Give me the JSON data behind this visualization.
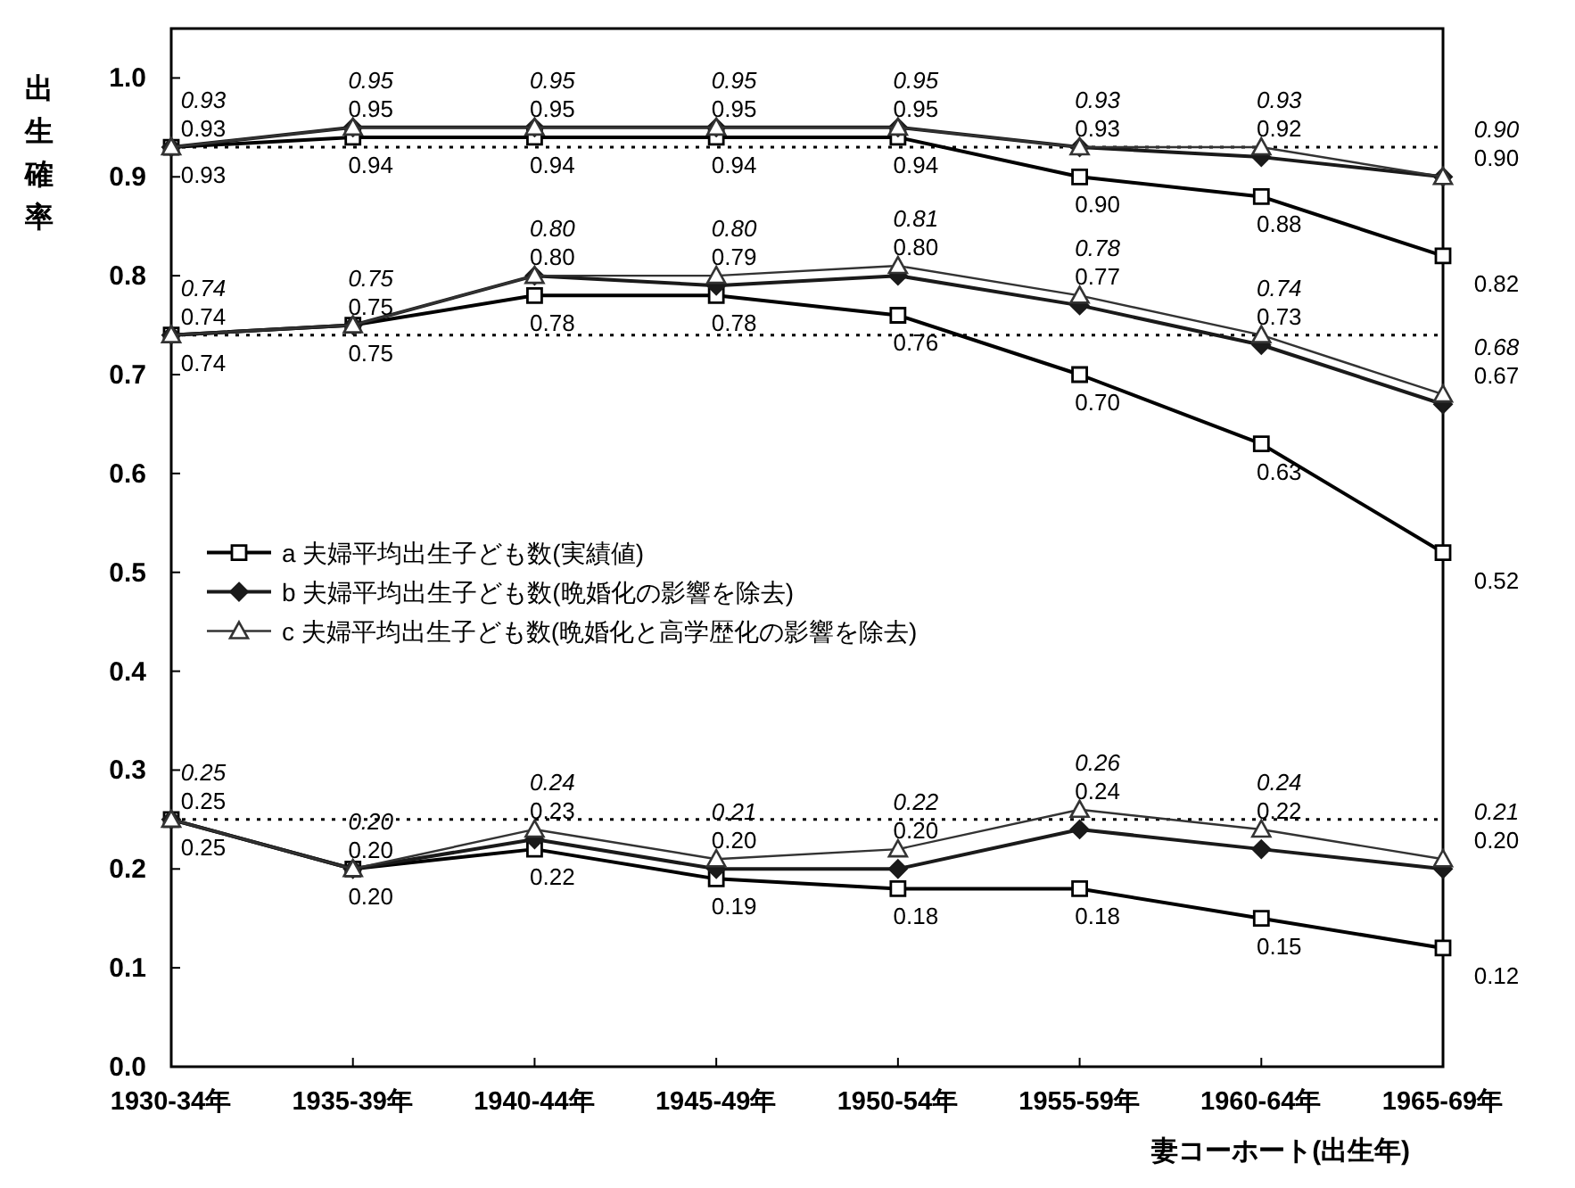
{
  "chart_data": {
    "type": "line",
    "xlabel": "妻コーホート(出生年)",
    "ylabel": "出生確率",
    "categories": [
      "1930-34年",
      "1935-39年",
      "1940-44年",
      "1945-49年",
      "1950-54年",
      "1955-59年",
      "1960-64年",
      "1965-69年"
    ],
    "ylim": [
      0,
      1.05
    ],
    "yticks": [
      {
        "value": 0,
        "label": "0.0"
      },
      {
        "value": 0.1,
        "label": "0.1"
      },
      {
        "value": 0.2,
        "label": "0.2"
      },
      {
        "value": 0.3,
        "label": "0.3"
      },
      {
        "value": 0.4,
        "label": "0.4"
      },
      {
        "value": 0.5,
        "label": "0.5"
      },
      {
        "value": 0.6,
        "label": "0.6"
      },
      {
        "value": 0.7,
        "label": "0.7"
      },
      {
        "value": 0.8,
        "label": "0.8"
      },
      {
        "value": 0.9,
        "label": "0.9"
      },
      {
        "value": 1,
        "label": "1.0"
      }
    ],
    "grid": false,
    "legend": "left",
    "line_style": "solid",
    "series": [
      {
        "name": "a 夫婦平均出生子ども数(実績値)",
        "color": "#000000",
        "marker": "square",
        "values": [
          0.93,
          0.94,
          0.94,
          0.94,
          0.94,
          0.9,
          0.88,
          0.82
        ],
        "value_labels": [
          "0.93",
          "0.94",
          "0.94",
          "0.94",
          "0.94",
          "0.90",
          "0.88",
          "0.82"
        ]
      },
      {
        "name": "b 夫婦平均出生子ども数(晩婚化の影響を除去)",
        "color": "#1a1a1a",
        "marker": "diamond",
        "values": [
          0.93,
          0.95,
          0.95,
          0.95,
          0.95,
          0.93,
          0.92,
          0.9
        ],
        "value_labels": [
          "0.93",
          "0.95",
          "0.95",
          "0.95",
          "0.95",
          "0.93",
          "0.92",
          "0.90"
        ]
      },
      {
        "name": "c 夫婦平均出生子ども数(晩婚化と高学歴化の影響を除去)",
        "color": "#333333",
        "marker": "triangle",
        "values": [
          0.93,
          0.95,
          0.95,
          0.95,
          0.95,
          0.93,
          0.93,
          0.9
        ],
        "value_labels": [
          "0.93",
          "0.95",
          "0.95",
          "0.95",
          "0.95",
          "0.93",
          "0.93",
          "0.90"
        ]
      },
      {
        "color": "#000000",
        "marker": "square",
        "values": [
          0.74,
          0.75,
          0.78,
          0.78,
          0.76,
          0.7,
          0.63,
          0.52
        ],
        "value_labels": [
          "0.74",
          "0.75",
          "0.78",
          "0.78",
          "0.76",
          "0.70",
          "0.63",
          "0.52"
        ]
      },
      {
        "color": "#1a1a1a",
        "marker": "diamond",
        "values": [
          0.74,
          0.75,
          0.8,
          0.79,
          0.8,
          0.77,
          0.73,
          0.67
        ],
        "value_labels": [
          "0.74",
          "0.75",
          "0.80",
          "0.79",
          "0.80",
          "0.77",
          "0.73",
          "0.67"
        ]
      },
      {
        "color": "#333333",
        "marker": "triangle",
        "values": [
          0.74,
          0.75,
          0.8,
          0.8,
          0.81,
          0.78,
          0.74,
          0.68
        ],
        "value_labels": [
          "0.74",
          "0.75",
          "0.80",
          "0.80",
          "0.81",
          "0.78",
          "0.74",
          "0.68"
        ]
      },
      {
        "color": "#000000",
        "marker": "square",
        "values": [
          0.25,
          0.2,
          0.22,
          0.19,
          0.18,
          0.18,
          0.15,
          0.12
        ],
        "value_labels": [
          "0.25",
          "0.20",
          "0.22",
          "0.19",
          "0.18",
          "0.18",
          "0.15",
          "0.12"
        ]
      },
      {
        "color": "#1a1a1a",
        "marker": "diamond",
        "values": [
          0.25,
          0.2,
          0.23,
          0.2,
          0.2,
          0.24,
          0.22,
          0.2
        ],
        "value_labels": [
          "0.25",
          "0.20",
          "0.23",
          "0.20",
          "0.20",
          "0.24",
          "0.22",
          "0.20"
        ]
      },
      {
        "color": "#333333",
        "marker": "triangle",
        "values": [
          0.25,
          0.2,
          0.24,
          0.21,
          0.22,
          0.26,
          0.24,
          0.21
        ],
        "value_labels": [
          "0.25",
          "0.20",
          "0.24",
          "0.21",
          "0.22",
          "0.26",
          "0.24",
          "0.21"
        ]
      }
    ],
    "ref_lines": [
      {
        "axis": "y",
        "value": 0.93,
        "line_style": "dotted"
      },
      {
        "axis": "y",
        "value": 0.74,
        "line_style": "dotted"
      },
      {
        "axis": "y",
        "value": 0.25,
        "line_style": "dotted"
      }
    ]
  }
}
